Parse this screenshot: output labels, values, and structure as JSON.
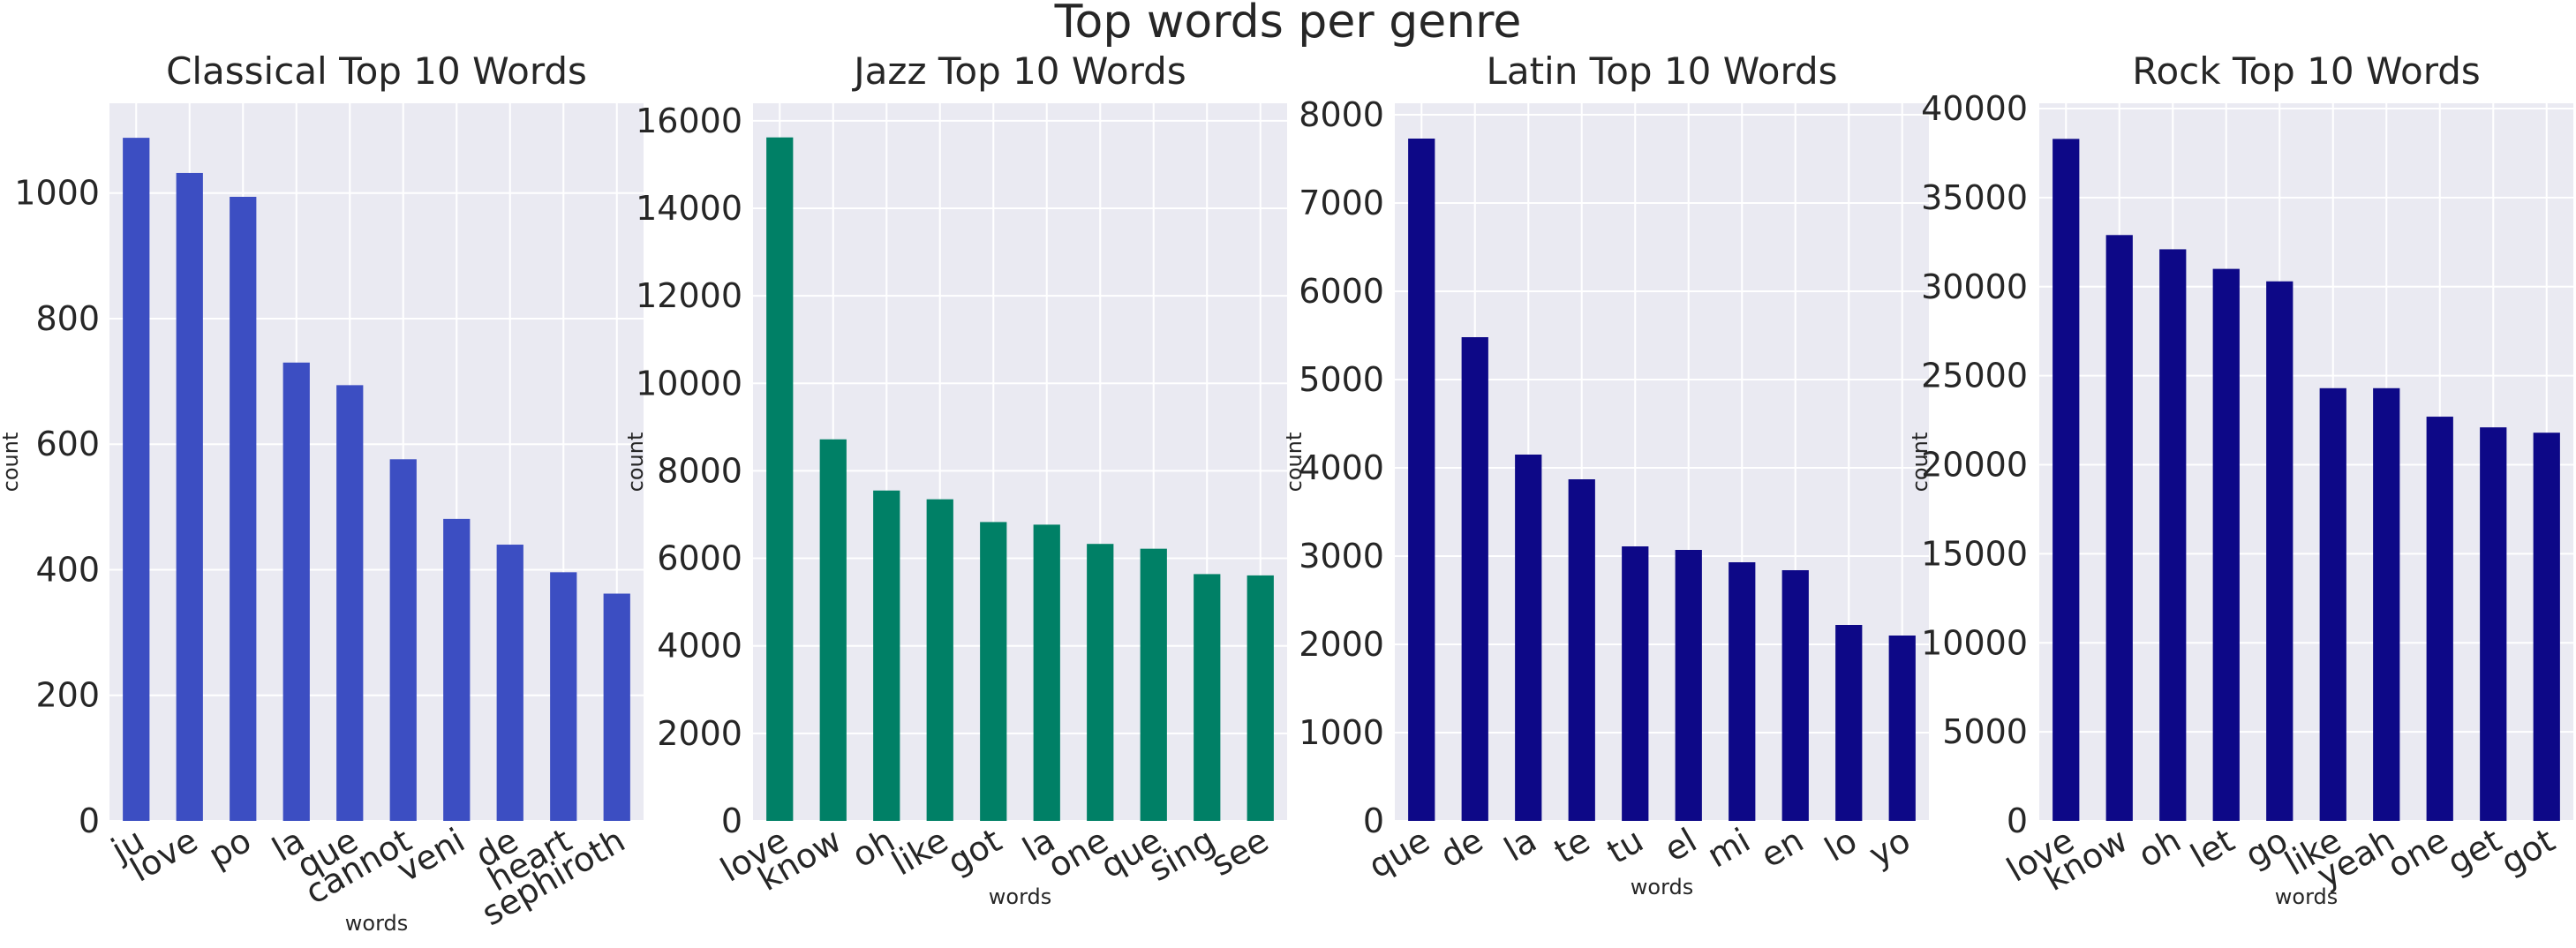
{
  "figure": {
    "suptitle": "Top words per genre",
    "background": "#ffffff",
    "axes_facecolor": "#eaeaf2",
    "grid_color": "#ffffff"
  },
  "chart_data": [
    {
      "type": "bar",
      "title": "Classical Top 10 Words",
      "xlabel": "words",
      "ylabel": "count",
      "color": "#3c4ec2",
      "categories": [
        "ju",
        "love",
        "po",
        "la",
        "que",
        "cannot",
        "veni",
        "de",
        "heart",
        "sephiroth"
      ],
      "values": [
        1088,
        1032,
        994,
        730,
        694,
        576,
        481,
        440,
        396,
        362
      ],
      "ylim": [
        0,
        1143
      ],
      "yticks": [
        0,
        200,
        400,
        600,
        800,
        1000
      ],
      "ytick_labels": [
        "0",
        "200",
        "400",
        "600",
        "800",
        "1000"
      ],
      "grid": true
    },
    {
      "type": "bar",
      "title": "Jazz Top 10 Words",
      "xlabel": "words",
      "ylabel": "count",
      "color": "#008066",
      "categories": [
        "love",
        "know",
        "oh",
        "like",
        "got",
        "la",
        "one",
        "que",
        "sing",
        "see"
      ],
      "values": [
        15620,
        8720,
        7550,
        7350,
        6830,
        6770,
        6330,
        6220,
        5640,
        5610
      ],
      "ylim": [
        0,
        16400
      ],
      "yticks": [
        0,
        2000,
        4000,
        6000,
        8000,
        10000,
        12000,
        14000,
        16000
      ],
      "ytick_labels": [
        "0",
        "2000",
        "4000",
        "6000",
        "8000",
        "10000",
        "12000",
        "14000",
        "16000"
      ],
      "grid": true
    },
    {
      "type": "bar",
      "title": "Latin Top 10 Words",
      "xlabel": "words",
      "ylabel": "count",
      "color": "#0d0887",
      "categories": [
        "que",
        "de",
        "la",
        "te",
        "tu",
        "el",
        "mi",
        "en",
        "lo",
        "yo"
      ],
      "values": [
        7730,
        5480,
        4150,
        3870,
        3110,
        3070,
        2930,
        2840,
        2220,
        2100
      ],
      "ylim": [
        0,
        8130
      ],
      "yticks": [
        0,
        1000,
        2000,
        3000,
        4000,
        5000,
        6000,
        7000,
        8000
      ],
      "ytick_labels": [
        "0",
        "1000",
        "2000",
        "3000",
        "4000",
        "5000",
        "6000",
        "7000",
        "8000"
      ],
      "grid": true
    },
    {
      "type": "bar",
      "title": "Rock Top 10 Words",
      "xlabel": "words",
      "ylabel": "count",
      "color": "#0d0887",
      "categories": [
        "love",
        "know",
        "oh",
        "let",
        "go",
        "like",
        "yeah",
        "one",
        "get",
        "got"
      ],
      "values": [
        38300,
        32900,
        32100,
        31000,
        30300,
        24300,
        24300,
        22700,
        22100,
        21800
      ],
      "ylim": [
        0,
        40300
      ],
      "yticks": [
        0,
        5000,
        10000,
        15000,
        20000,
        25000,
        30000,
        35000,
        40000
      ],
      "ytick_labels": [
        "0",
        "5000",
        "10000",
        "15000",
        "20000",
        "25000",
        "30000",
        "35000",
        "40000"
      ],
      "grid": true
    }
  ]
}
